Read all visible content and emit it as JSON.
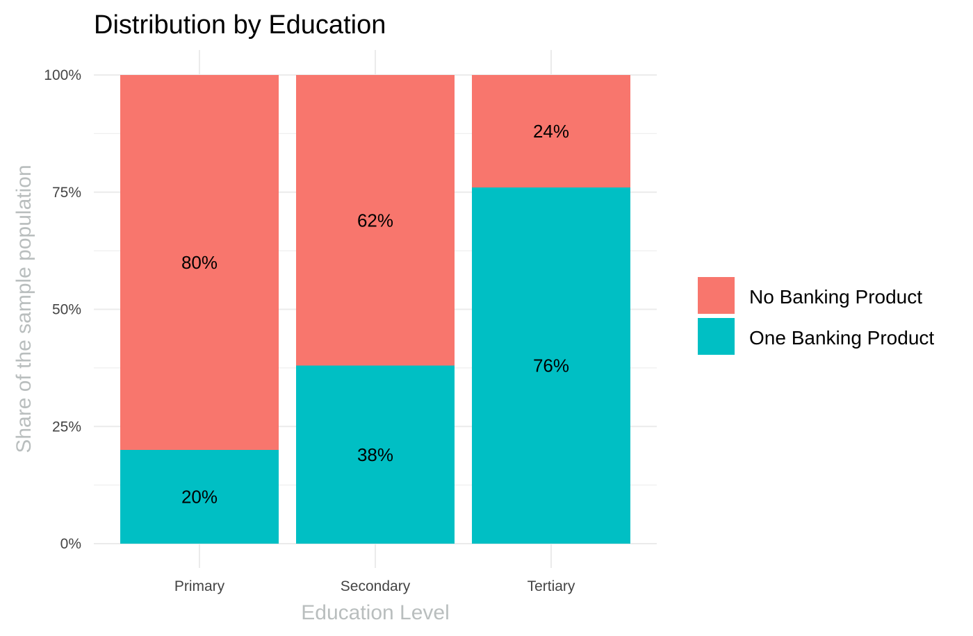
{
  "chart_data": {
    "type": "bar",
    "stacked": true,
    "percent": true,
    "title": "Distribution by Education",
    "xlabel": "Education Level",
    "ylabel": "Share of the sample population",
    "categories": [
      "Primary",
      "Secondary",
      "Tertiary"
    ],
    "series": [
      {
        "name": "No Banking Product",
        "color": "#F8766D",
        "values": [
          80,
          62,
          24
        ],
        "labels": [
          "80%",
          "62%",
          "24%"
        ]
      },
      {
        "name": "One Banking Product",
        "color": "#00BFC4",
        "values": [
          20,
          38,
          76
        ],
        "labels": [
          "20%",
          "38%",
          "76%"
        ]
      }
    ],
    "ylim": [
      0,
      100
    ],
    "yticks": [
      0,
      25,
      50,
      75,
      100
    ],
    "ytick_labels": [
      "0%",
      "25%",
      "50%",
      "75%",
      "100%"
    ],
    "grid": true,
    "legend": {
      "position": "right"
    },
    "colors": {
      "grid": "#EBEBEB",
      "axis_title": "#B9BEBE",
      "tick_text": "#444444"
    }
  }
}
